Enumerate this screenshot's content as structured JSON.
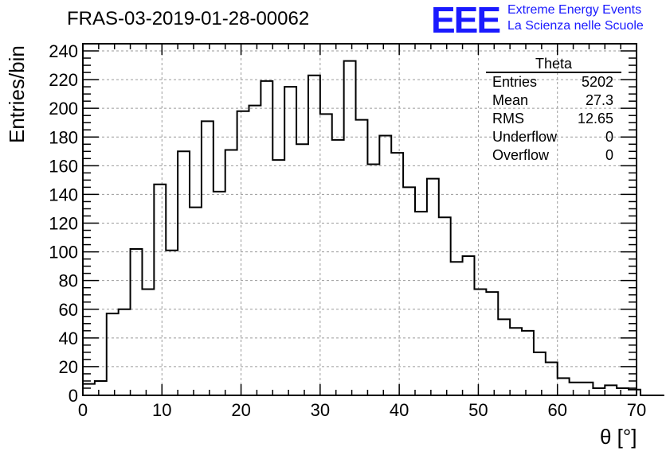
{
  "run_title": "FRAS-03-2019-01-28-00062",
  "logo": {
    "mark": "EEE",
    "line1": "Extreme Energy Events",
    "line2": "La Scienza nelle Scuole",
    "color": "#1a1aff"
  },
  "stats_box": {
    "name": "Theta",
    "rows": [
      {
        "label": "Entries",
        "value": "5202"
      },
      {
        "label": "Mean",
        "value": "27.3"
      },
      {
        "label": "RMS",
        "value": "12.65"
      },
      {
        "label": "Underflow",
        "value": "0"
      },
      {
        "label": "Overflow",
        "value": "0"
      }
    ]
  },
  "chart_data": {
    "type": "histogram",
    "title": "FRAS-03-2019-01-28-00062",
    "xlabel": "θ [°]",
    "ylabel": "Entries/bin",
    "xlim": [
      0,
      70
    ],
    "ylim": [
      0,
      245
    ],
    "grid": true,
    "bin_width": 1.5,
    "bin_edges_start": 0,
    "values": [
      8,
      10,
      57,
      60,
      102,
      74,
      147,
      101,
      170,
      131,
      191,
      142,
      171,
      198,
      202,
      219,
      164,
      215,
      175,
      223,
      196,
      178,
      233,
      192,
      161,
      181,
      169,
      145,
      128,
      151,
      124,
      93,
      97,
      74,
      72,
      53,
      47,
      45,
      30,
      23,
      12,
      9,
      9,
      5,
      7,
      5,
      4,
      0,
      0
    ],
    "xticks": [
      0,
      10,
      20,
      30,
      40,
      50,
      60,
      70
    ],
    "yticks": [
      0,
      20,
      40,
      60,
      80,
      100,
      120,
      140,
      160,
      180,
      200,
      220,
      240
    ],
    "line_color": "#000000"
  }
}
